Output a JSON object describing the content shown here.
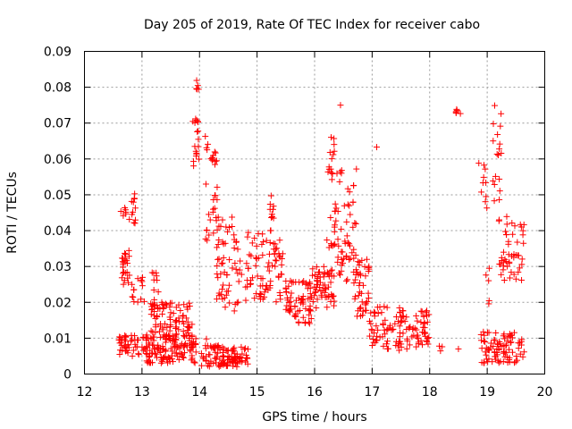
{
  "chart_data": {
    "type": "scatter",
    "title": "Day 205 of 2019, Rate Of TEC Index for receiver cabo",
    "xlabel": "GPS time / hours",
    "ylabel": "ROTI / TECUs",
    "xlim": [
      12,
      20
    ],
    "ylim": [
      0,
      0.09
    ],
    "x_ticks": [
      "12",
      "13",
      "14",
      "15",
      "16",
      "17",
      "18",
      "19",
      "20"
    ],
    "y_ticks": [
      "0",
      "0.01",
      "0.02",
      "0.03",
      "0.04",
      "0.05",
      "0.06",
      "0.07",
      "0.08",
      "0.09"
    ],
    "grid": true,
    "marker": "+",
    "color": "#ff0000",
    "clusters": [
      {
        "x0": 12.6,
        "x1": 12.95,
        "ylo": 0.005,
        "yhi": 0.011,
        "n": 40
      },
      {
        "x0": 12.62,
        "x1": 12.72,
        "ylo": 0.044,
        "yhi": 0.047,
        "n": 6
      },
      {
        "x0": 12.65,
        "x1": 12.8,
        "ylo": 0.025,
        "yhi": 0.035,
        "n": 24
      },
      {
        "x0": 12.78,
        "x1": 12.9,
        "ylo": 0.042,
        "yhi": 0.052,
        "n": 12
      },
      {
        "x0": 12.82,
        "x1": 13.05,
        "ylo": 0.02,
        "yhi": 0.027,
        "n": 14
      },
      {
        "x0": 13.0,
        "x1": 13.95,
        "ylo": 0.003,
        "yhi": 0.011,
        "n": 140
      },
      {
        "x0": 13.15,
        "x1": 13.9,
        "ylo": 0.01,
        "yhi": 0.02,
        "n": 80
      },
      {
        "x0": 13.15,
        "x1": 13.3,
        "ylo": 0.018,
        "yhi": 0.029,
        "n": 16
      },
      {
        "x0": 13.85,
        "x1": 14.0,
        "ylo": 0.058,
        "yhi": 0.074,
        "n": 18
      },
      {
        "x0": 13.9,
        "x1": 14.0,
        "ylo": 0.079,
        "yhi": 0.082,
        "n": 4
      },
      {
        "x0": 14.05,
        "x1": 14.15,
        "ylo": 0.062,
        "yhi": 0.071,
        "n": 4
      },
      {
        "x0": 14.08,
        "x1": 14.35,
        "ylo": 0.036,
        "yhi": 0.053,
        "n": 20
      },
      {
        "x0": 14.18,
        "x1": 14.3,
        "ylo": 0.057,
        "yhi": 0.062,
        "n": 10
      },
      {
        "x0": 14.0,
        "x1": 14.85,
        "ylo": 0.002,
        "yhi": 0.008,
        "n": 110
      },
      {
        "x0": 14.3,
        "x1": 14.75,
        "ylo": 0.017,
        "yhi": 0.044,
        "n": 60
      },
      {
        "x0": 14.8,
        "x1": 15.45,
        "ylo": 0.02,
        "yhi": 0.04,
        "n": 80
      },
      {
        "x0": 15.2,
        "x1": 15.3,
        "ylo": 0.04,
        "yhi": 0.05,
        "n": 12
      },
      {
        "x0": 15.5,
        "x1": 15.95,
        "ylo": 0.014,
        "yhi": 0.026,
        "n": 70
      },
      {
        "x0": 15.95,
        "x1": 16.35,
        "ylo": 0.018,
        "yhi": 0.03,
        "n": 60
      },
      {
        "x0": 16.18,
        "x1": 16.35,
        "ylo": 0.054,
        "yhi": 0.067,
        "n": 14
      },
      {
        "x0": 16.2,
        "x1": 16.4,
        "ylo": 0.035,
        "yhi": 0.045,
        "n": 10
      },
      {
        "x0": 16.35,
        "x1": 16.75,
        "ylo": 0.025,
        "yhi": 0.058,
        "n": 60
      },
      {
        "x0": 16.7,
        "x1": 16.95,
        "ylo": 0.016,
        "yhi": 0.032,
        "n": 40
      },
      {
        "x0": 16.95,
        "x1": 17.5,
        "ylo": 0.006,
        "yhi": 0.019,
        "n": 60
      },
      {
        "x0": 17.5,
        "x1": 18.0,
        "ylo": 0.007,
        "yhi": 0.018,
        "n": 60
      },
      {
        "x0": 18.1,
        "x1": 18.25,
        "ylo": 0.006,
        "yhi": 0.008,
        "n": 3
      },
      {
        "x0": 18.45,
        "x1": 18.55,
        "ylo": 0.072,
        "yhi": 0.074,
        "n": 6
      },
      {
        "x0": 18.85,
        "x1": 19.65,
        "ylo": 0.003,
        "yhi": 0.012,
        "n": 90
      },
      {
        "x0": 18.85,
        "x1": 19.0,
        "ylo": 0.046,
        "yhi": 0.06,
        "n": 10
      },
      {
        "x0": 18.95,
        "x1": 19.05,
        "ylo": 0.019,
        "yhi": 0.031,
        "n": 5
      },
      {
        "x0": 19.1,
        "x1": 19.25,
        "ylo": 0.048,
        "yhi": 0.076,
        "n": 18
      },
      {
        "x0": 19.2,
        "x1": 19.65,
        "ylo": 0.026,
        "yhi": 0.044,
        "n": 50
      }
    ],
    "points": [
      {
        "x": 14.12,
        "y": 0.0098
      },
      {
        "x": 17.08,
        "y": 0.0633
      },
      {
        "x": 16.45,
        "y": 0.075
      },
      {
        "x": 18.5,
        "y": 0.007
      },
      {
        "x": 13.95,
        "y": 0.0819
      }
    ]
  }
}
